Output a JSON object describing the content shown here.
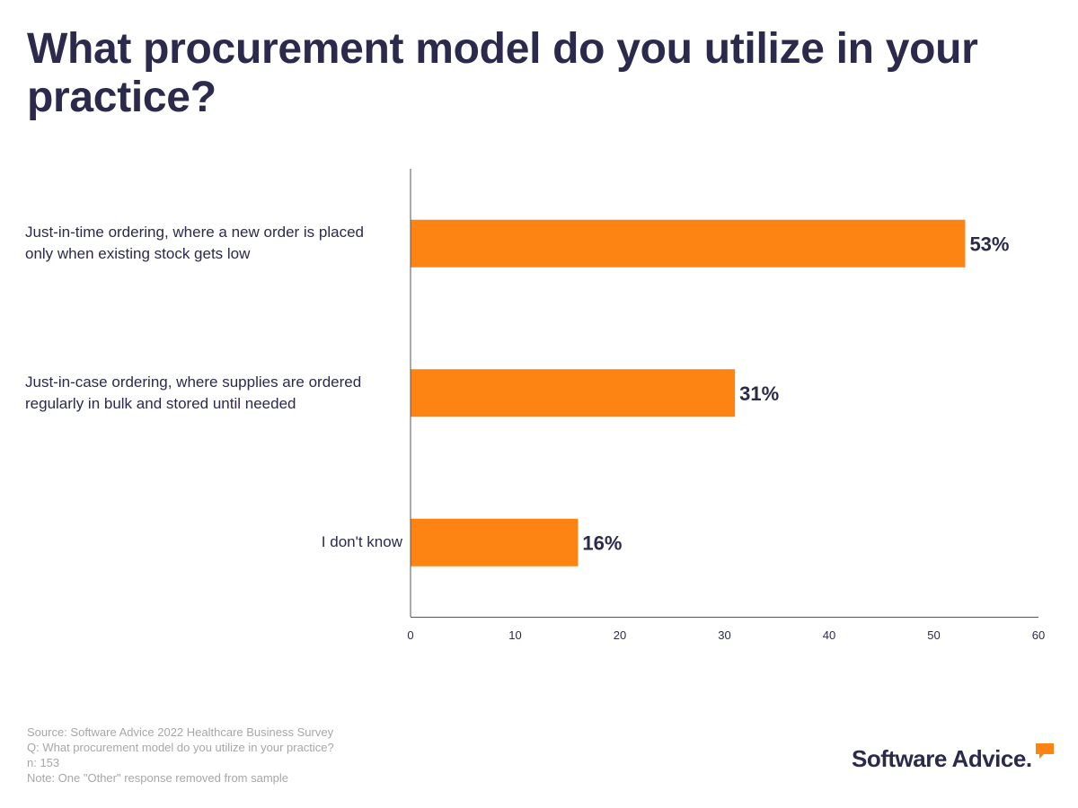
{
  "title": "What procurement model do you utilize in your practice?",
  "chart_data": {
    "type": "bar",
    "orientation": "horizontal",
    "categories": [
      [
        "Just-in-time ordering, where a new order is placed",
        "only when existing stock gets low"
      ],
      [
        "Just-in-case ordering, where supplies are ordered",
        "regularly in bulk and stored until needed"
      ],
      [
        "I don't know"
      ]
    ],
    "values": [
      53,
      31,
      16
    ],
    "data_labels": [
      "53%",
      "31%",
      "16%"
    ],
    "xlim": [
      0,
      60
    ],
    "xticks": [
      "0",
      "10",
      "20",
      "30",
      "40",
      "50",
      "60"
    ],
    "xlabel": "",
    "ylabel": "",
    "grid": false,
    "bar_color": "#fd8412"
  },
  "footer": {
    "source": "Source: Software Advice 2022 Healthcare Business Survey",
    "question": "Q: What procurement model do you utilize in your practice?",
    "n": "n: 153",
    "note": "Note: One \"Other\" response removed from sample"
  },
  "logo": {
    "text": "Software Advice.",
    "accent_color": "#fd8412"
  },
  "colors": {
    "text": "#2b2a4c",
    "muted": "#a7a7a7",
    "axis": "#555555"
  }
}
